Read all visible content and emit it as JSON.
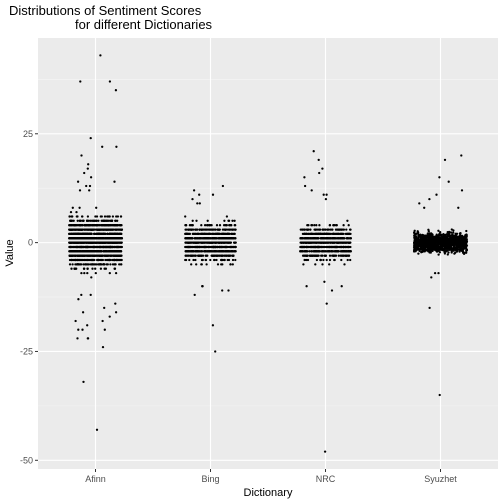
{
  "chart_data": {
    "type": "scatter",
    "title_lines": [
      "Distributions of Sentiment Scores",
      "for different Dictionaries"
    ],
    "xlabel": "Dictionary",
    "ylabel": "Value",
    "categories": [
      "Afinn",
      "Bing",
      "NRC",
      "Syuzhet"
    ],
    "ylim": [
      -52,
      47
    ],
    "yticks": [
      -50,
      -25,
      0,
      25
    ],
    "ytick_labels": [
      "-50",
      "-25",
      "0",
      "25"
    ],
    "grid": true,
    "background": "#ebebeb",
    "point_color": "#000000",
    "dense_ranges": [
      {
        "category": "Afinn",
        "range": [
          -10,
          10
        ],
        "step": 1,
        "count": 1900,
        "jitter": 0.23
      },
      {
        "category": "Bing",
        "range": [
          -8,
          6
        ],
        "step": 1,
        "count": 900,
        "jitter": 0.22
      },
      {
        "category": "NRC",
        "range": [
          -7,
          7
        ],
        "step": 1,
        "count": 800,
        "jitter": 0.22
      },
      {
        "category": "Syuzhet",
        "range": [
          -4,
          4
        ],
        "step": 0.25,
        "count": 1300,
        "jitter": 0.23
      }
    ],
    "sparse_points": [
      {
        "category": "Afinn",
        "values": [
          43,
          37,
          37,
          35,
          24,
          22,
          22,
          20,
          18,
          17,
          16,
          15,
          14,
          14,
          13,
          13,
          12,
          12,
          -12,
          -12,
          -13,
          -14,
          -15,
          -16,
          -16,
          -17,
          -18,
          -18,
          -19,
          -20,
          -20,
          -20,
          -22,
          -22,
          -22,
          -24,
          -32,
          -43
        ]
      },
      {
        "category": "Bing",
        "values": [
          13,
          12,
          11,
          11,
          10,
          9,
          9,
          -10,
          -10,
          -11,
          -11,
          -12,
          -19,
          -25
        ]
      },
      {
        "category": "NRC",
        "values": [
          21,
          19,
          17,
          16,
          15,
          13,
          12,
          11,
          11,
          10,
          -9,
          -10,
          -10,
          -11,
          -14,
          -48
        ]
      },
      {
        "category": "Syuzhet",
        "values": [
          20,
          19,
          15,
          14,
          12,
          11,
          10,
          9,
          8,
          8,
          -7,
          -7,
          -8,
          -15,
          -35
        ]
      }
    ]
  }
}
